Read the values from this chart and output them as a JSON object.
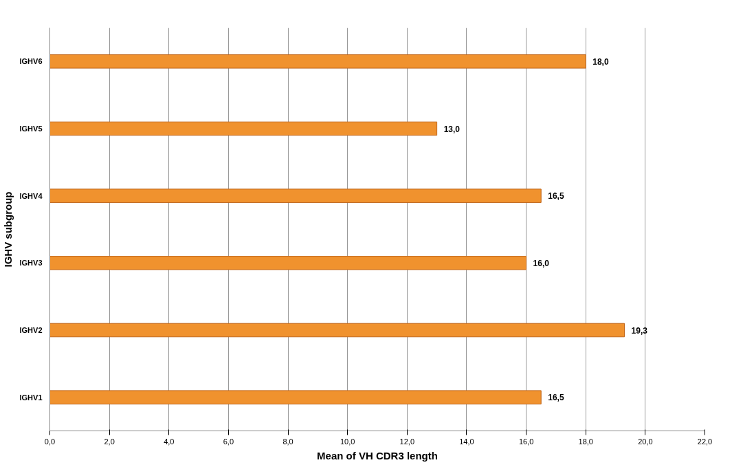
{
  "chart_data": {
    "type": "bar",
    "orientation": "horizontal",
    "xlabel": "Mean of VH CDR3 length",
    "ylabel": "IGHV subgroup",
    "categories": [
      "IGHV6",
      "IGHV5",
      "IGHV4",
      "IGHV3",
      "IGHV2",
      "IGHV1"
    ],
    "values": [
      18.0,
      13.0,
      16.5,
      16.0,
      19.3,
      16.5
    ],
    "value_labels": [
      "18,0",
      "13,0",
      "16,5",
      "16,0",
      "19,3",
      "16,5"
    ],
    "color": "#f0922e",
    "xlim": [
      0,
      22
    ],
    "xticks": [
      {
        "value": 0,
        "label": "0,0"
      },
      {
        "value": 2,
        "label": "2,0"
      },
      {
        "value": 4,
        "label": "4,0"
      },
      {
        "value": 6,
        "label": "6,0"
      },
      {
        "value": 8,
        "label": "8,0"
      },
      {
        "value": 10,
        "label": "10,0"
      },
      {
        "value": 12,
        "label": "12,0"
      },
      {
        "value": 14,
        "label": "14,0"
      },
      {
        "value": 16,
        "label": "16,0"
      },
      {
        "value": 18,
        "label": "18,0"
      },
      {
        "value": 20,
        "label": "20,0"
      },
      {
        "value": 22,
        "label": "22,0"
      }
    ],
    "grid": "x"
  }
}
